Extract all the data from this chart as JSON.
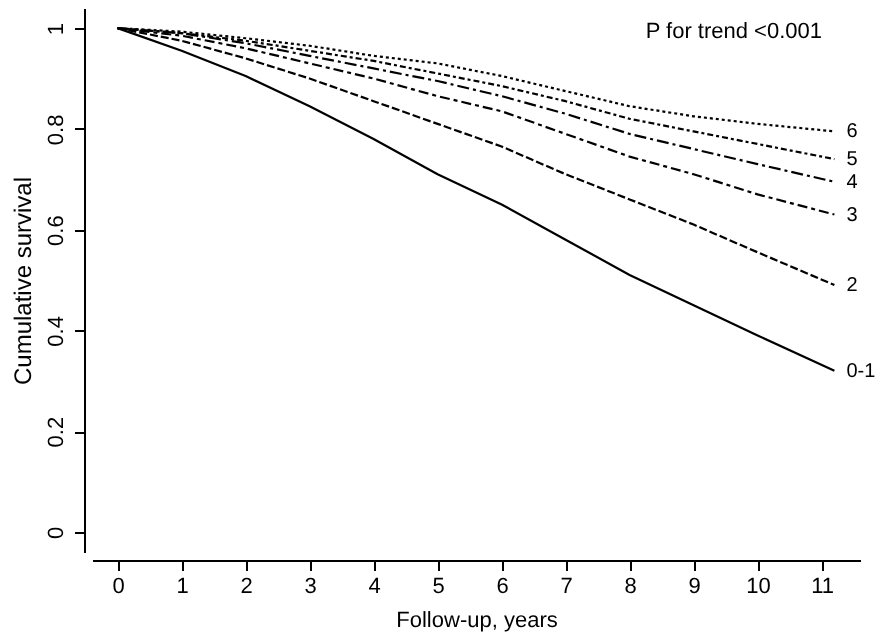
{
  "chart_data": {
    "type": "line",
    "xlabel": "Follow-up, years",
    "ylabel": "Cumulative survival",
    "annotations": [
      "P for trend <0.001"
    ],
    "x": [
      0,
      1,
      2,
      3,
      4,
      5,
      6,
      7,
      8,
      9,
      10,
      11.2
    ],
    "xlim": [
      -0.4,
      11.6
    ],
    "xticks": [
      0,
      1,
      2,
      3,
      4,
      5,
      6,
      7,
      8,
      9,
      10,
      11
    ],
    "ylim": [
      -0.04,
      1.04
    ],
    "yticks": [
      0,
      0.2,
      0.4,
      0.6,
      0.8,
      1
    ],
    "grid": false,
    "marker": "none",
    "series": [
      {
        "name": "0-1",
        "color": "#000000",
        "line_style": "solid",
        "values": [
          1,
          0.955,
          0.905,
          0.845,
          0.78,
          0.71,
          0.65,
          0.58,
          0.51,
          0.45,
          0.39,
          0.32
        ]
      },
      {
        "name": "2",
        "color": "#000000",
        "line_style": "dashed",
        "values": [
          1,
          0.975,
          0.94,
          0.9,
          0.855,
          0.81,
          0.765,
          0.71,
          0.66,
          0.61,
          0.555,
          0.49
        ]
      },
      {
        "name": "3",
        "color": "#000000",
        "line_style": "dashed",
        "values": [
          1,
          0.985,
          0.96,
          0.93,
          0.9,
          0.865,
          0.835,
          0.79,
          0.745,
          0.71,
          0.67,
          0.63
        ]
      },
      {
        "name": "4",
        "color": "#000000",
        "line_style": "dashed",
        "values": [
          1,
          0.99,
          0.97,
          0.945,
          0.92,
          0.895,
          0.865,
          0.83,
          0.79,
          0.76,
          0.73,
          0.695
        ]
      },
      {
        "name": "5",
        "color": "#000000",
        "line_style": "dashed",
        "values": [
          1,
          0.99,
          0.975,
          0.955,
          0.935,
          0.91,
          0.885,
          0.855,
          0.82,
          0.795,
          0.77,
          0.74
        ]
      },
      {
        "name": "6",
        "color": "#000000",
        "line_style": "dotted",
        "values": [
          1,
          0.993,
          0.98,
          0.965,
          0.945,
          0.93,
          0.905,
          0.875,
          0.845,
          0.825,
          0.81,
          0.795
        ]
      }
    ]
  }
}
